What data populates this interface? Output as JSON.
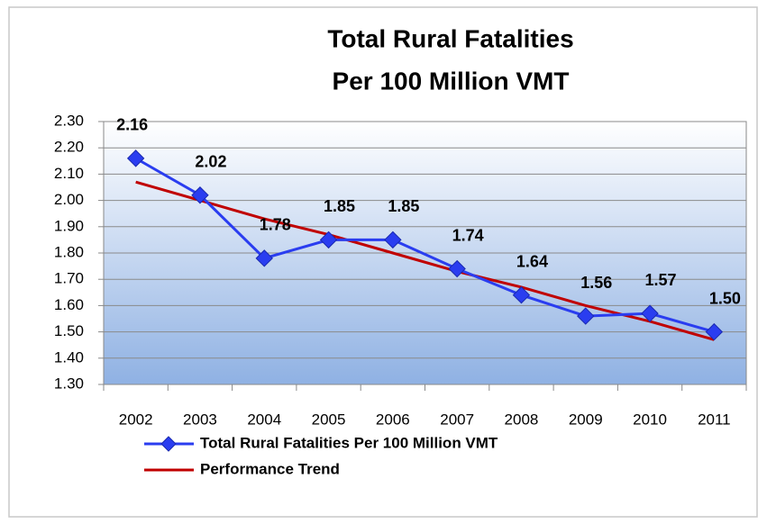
{
  "chart_data": {
    "type": "line",
    "title": [
      "Total Rural Fatalities",
      "Per 100 Million VMT"
    ],
    "categories": [
      "2002",
      "2003",
      "2004",
      "2005",
      "2006",
      "2007",
      "2008",
      "2009",
      "2010",
      "2011"
    ],
    "series": [
      {
        "name": "Total Rural Fatalities Per 100 Million VMT",
        "color": "#2a3df0",
        "marker": "diamond",
        "values": [
          2.16,
          2.02,
          1.78,
          1.85,
          1.85,
          1.74,
          1.64,
          1.56,
          1.57,
          1.5
        ],
        "value_labels": [
          "2.16",
          "2.02",
          "1.78",
          "1.85",
          "1.85",
          "1.74",
          "1.64",
          "1.56",
          "1.57",
          "1.50"
        ]
      },
      {
        "name": "Performance Trend",
        "color": "#c00000",
        "values": [
          2.07,
          2.0,
          1.93,
          1.87,
          1.8,
          1.73,
          1.67,
          1.6,
          1.54,
          1.47
        ]
      }
    ],
    "ylim": [
      1.3,
      2.3
    ],
    "yticks": [
      {
        "value": 1.3,
        "label": "1.30"
      },
      {
        "value": 1.4,
        "label": "1.40"
      },
      {
        "value": 1.5,
        "label": "1.50"
      },
      {
        "value": 1.6,
        "label": "1.60"
      },
      {
        "value": 1.7,
        "label": "1.70"
      },
      {
        "value": 1.8,
        "label": "1.80"
      },
      {
        "value": 1.9,
        "label": "1.90"
      },
      {
        "value": 2.0,
        "label": "2.00"
      },
      {
        "value": 2.1,
        "label": "2.10"
      },
      {
        "value": 2.2,
        "label": "2.20"
      },
      {
        "value": 2.3,
        "label": "2.30"
      }
    ],
    "grid": true,
    "legend": "bottom"
  }
}
